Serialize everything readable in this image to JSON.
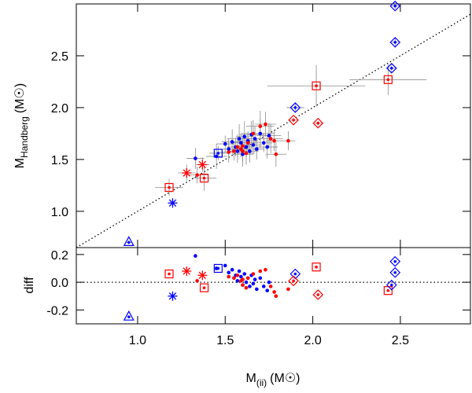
{
  "chart_data": {
    "type": "scatter",
    "xlim": [
      0.65,
      2.9
    ],
    "xticks": [
      {
        "value": 1,
        "label": "1.0"
      },
      {
        "value": 1.5,
        "label": "1.5"
      },
      {
        "value": 2,
        "label": "2.0"
      },
      {
        "value": 2.5,
        "label": "2.5"
      }
    ],
    "x_label": {
      "main": "M",
      "sub": "(ii)",
      "unit": "(M☉)"
    },
    "panels": [
      {
        "y_label": {
          "main": "M",
          "sub": "Handberg",
          "unit": "(M☉)"
        },
        "ylim": [
          0.65,
          3.0
        ],
        "yticks": [
          {
            "value": 1,
            "label": "1.0"
          },
          {
            "value": 1.5,
            "label": "1.5"
          },
          {
            "value": 2,
            "label": "2.0"
          },
          {
            "value": 2.5,
            "label": "2.5"
          }
        ]
      },
      {
        "y_label": {
          "main": "diff"
        },
        "ylim": [
          -0.3,
          0.25
        ],
        "yticks": [
          -0.2,
          {
            "value": 0,
            "label": "0.0"
          },
          0.2
        ]
      }
    ],
    "series": [
      {
        "color": "#0000ff",
        "marker": "dot",
        "x": [
          1.33,
          1.45,
          1.5,
          1.52,
          1.54,
          1.56,
          1.57,
          1.58,
          1.59,
          1.6,
          1.61,
          1.62,
          1.63,
          1.64,
          1.65,
          1.66,
          1.67,
          1.68,
          1.7,
          1.72,
          1.74,
          1.75
        ],
        "y": [
          1.51,
          1.53,
          1.65,
          1.6,
          1.67,
          1.62,
          1.58,
          1.7,
          1.66,
          1.55,
          1.72,
          1.62,
          1.68,
          1.58,
          1.74,
          1.64,
          1.7,
          1.6,
          1.75,
          1.66,
          1.62,
          1.73
        ],
        "xerr": [
          0.05,
          0.06,
          0.05,
          0.04,
          0.06,
          0.05,
          0.04,
          0.07,
          0.05,
          0.06,
          0.05,
          0.04,
          0.06,
          0.05,
          0.07,
          0.05,
          0.06,
          0.04,
          0.08,
          0.05,
          0.06,
          0.07
        ],
        "yerr": [
          0.1,
          0.12,
          0.08,
          0.1,
          0.12,
          0.09,
          0.11,
          0.14,
          0.08,
          0.12,
          0.15,
          0.1,
          0.09,
          0.11,
          0.13,
          0.08,
          0.12,
          0.1,
          0.14,
          0.09,
          0.11,
          0.12
        ],
        "diff": [
          0.19,
          0.1,
          0.12,
          0.07,
          0.09,
          0.05,
          0.01,
          0.08,
          0.04,
          -0.02,
          0.06,
          0.0,
          0.03,
          -0.03,
          0.05,
          -0.01,
          0.02,
          -0.05,
          0.03,
          -0.03,
          -0.06,
          0.0
        ]
      },
      {
        "color": "#ff0000",
        "marker": "dot",
        "x": [
          1.34,
          1.52,
          1.55,
          1.57,
          1.59,
          1.6,
          1.62,
          1.63,
          1.66,
          1.7,
          1.73,
          1.76,
          1.78,
          1.79,
          1.86,
          1.6
        ],
        "y": [
          1.35,
          1.57,
          1.58,
          1.62,
          1.6,
          1.63,
          1.56,
          1.66,
          1.75,
          1.82,
          1.84,
          1.7,
          1.68,
          1.55,
          1.68,
          1.58
        ],
        "xerr": [
          0.06,
          0.05,
          0.04,
          0.06,
          0.05,
          0.04,
          0.05,
          0.06,
          0.07,
          0.08,
          0.06,
          0.07,
          0.05,
          0.06,
          0.04,
          0.05
        ],
        "yerr": [
          0.08,
          0.1,
          0.09,
          0.12,
          0.08,
          0.1,
          0.11,
          0.09,
          0.13,
          0.15,
          0.12,
          0.14,
          0.1,
          0.12,
          0.09,
          0.1
        ],
        "diff": [
          0.01,
          0.04,
          0.03,
          0.05,
          0.01,
          0.02,
          -0.04,
          0.03,
          0.06,
          0.08,
          0.09,
          -0.03,
          -0.07,
          -0.1,
          -0.05,
          -0.02
        ]
      },
      {
        "color": "#0000ff",
        "marker": "square",
        "x": [
          1.46
        ],
        "y": [
          1.56
        ],
        "xerr": [
          0.05
        ],
        "yerr": [
          0.07
        ],
        "diff": [
          0.1
        ]
      },
      {
        "color": "#ff0000",
        "marker": "square",
        "x": [
          1.18,
          1.38,
          2.02,
          2.43
        ],
        "y": [
          1.23,
          1.32,
          2.21,
          2.27
        ],
        "xerr": [
          0.08,
          0.07,
          0.28,
          0.22
        ],
        "yerr": [
          0.08,
          0.12,
          0.2,
          0.15
        ],
        "diff": [
          0.06,
          -0.04,
          0.11,
          -0.06
        ]
      },
      {
        "color": "#ff0000",
        "marker": "asterisk",
        "x": [
          1.28,
          1.37
        ],
        "y": [
          1.37,
          1.45
        ],
        "xerr": [
          0.05,
          0.04
        ],
        "yerr": [
          0.08,
          0.07
        ],
        "diff": [
          0.08,
          0.05
        ]
      },
      {
        "color": "#0000ff",
        "marker": "asterisk",
        "x": [
          1.2
        ],
        "y": [
          1.08
        ],
        "xerr": [
          0.02
        ],
        "yerr": [
          0.03
        ],
        "diff": [
          -0.1
        ]
      },
      {
        "color": "#0000ff",
        "marker": "diamond",
        "x": [
          1.9,
          2.45,
          2.47,
          2.47
        ],
        "y": [
          2.0,
          2.38,
          2.63,
          2.98
        ],
        "xerr": [
          0.05,
          0.03,
          0.02,
          0.02
        ],
        "yerr": [
          0.05,
          0.05,
          0.04,
          0.03
        ],
        "diff": [
          0.06,
          -0.02,
          0.07,
          0.15
        ]
      },
      {
        "color": "#ff0000",
        "marker": "diamond",
        "x": [
          1.89,
          2.03
        ],
        "y": [
          1.88,
          1.85
        ],
        "xerr": [
          0.02,
          0.02
        ],
        "yerr": [
          0.02,
          0.02
        ],
        "diff": [
          0.01,
          -0.09
        ]
      },
      {
        "color": "#0000ff",
        "marker": "triangle",
        "x": [
          0.95
        ],
        "y": [
          0.7
        ],
        "xerr": [
          0.02
        ],
        "yerr": [
          0.02
        ],
        "diff": [
          -0.25
        ]
      }
    ]
  }
}
